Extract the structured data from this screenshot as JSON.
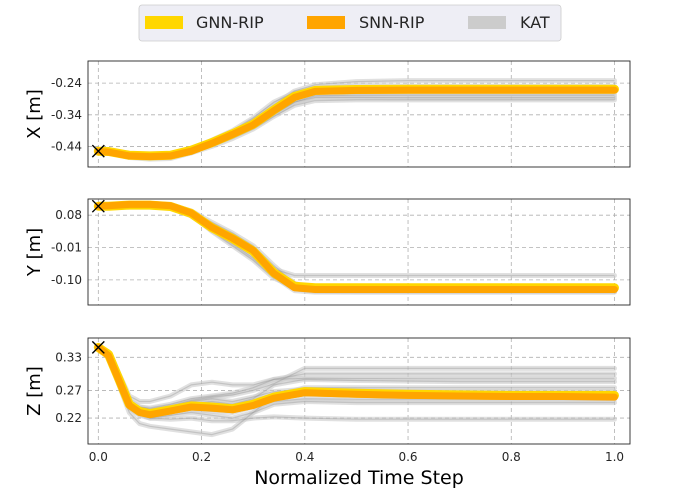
{
  "chart_data": {
    "type": "line",
    "xlabel": "Normalized Time Step",
    "xlim": [
      -0.02,
      1.03
    ],
    "x_ticks": [
      0.0,
      0.2,
      0.4,
      0.6,
      0.8,
      1.0
    ],
    "x_tick_labels": [
      "0.0",
      "0.2",
      "0.4",
      "0.6",
      "0.8",
      "1.0"
    ],
    "grid": true,
    "legend": {
      "placement": "top-center",
      "entries": [
        {
          "name": "GNN-RIP",
          "color": "#FFD700"
        },
        {
          "name": "SNN-RIP",
          "color": "#FFA500"
        },
        {
          "name": "KAT",
          "color": "#CCCCCC"
        }
      ]
    },
    "start_marker": "x",
    "panels": [
      {
        "ylabel": "X [m]",
        "ylim": [
          -0.505,
          -0.17
        ],
        "y_ticks": [
          -0.44,
          -0.34,
          -0.24
        ],
        "y_tick_labels": [
          "-0.44",
          "-0.34",
          "-0.24"
        ],
        "x": [
          0.0,
          0.02,
          0.06,
          0.1,
          0.14,
          0.18,
          0.22,
          0.26,
          0.3,
          0.34,
          0.38,
          0.42,
          0.5,
          0.6,
          0.7,
          0.8,
          0.9,
          1.0
        ],
        "series": [
          {
            "name": "GNN-RIP",
            "values": [
              -0.455,
              -0.456,
              -0.468,
              -0.47,
              -0.468,
              -0.452,
              -0.428,
              -0.4,
              -0.37,
              -0.325,
              -0.282,
              -0.263,
              -0.26,
              -0.259,
              -0.259,
              -0.259,
              -0.259,
              -0.259
            ]
          },
          {
            "name": "SNN-RIP",
            "values": [
              -0.455,
              -0.458,
              -0.47,
              -0.472,
              -0.47,
              -0.455,
              -0.43,
              -0.402,
              -0.372,
              -0.327,
              -0.285,
              -0.266,
              -0.263,
              -0.262,
              -0.262,
              -0.262,
              -0.262,
              -0.262
            ]
          }
        ],
        "kat": [
          [
            -0.455,
            -0.46,
            -0.47,
            -0.475,
            -0.472,
            -0.45,
            -0.42,
            -0.39,
            -0.35,
            -0.3,
            -0.27,
            -0.255,
            -0.25,
            -0.25,
            -0.25,
            -0.25,
            -0.25,
            -0.25
          ],
          [
            -0.455,
            -0.458,
            -0.468,
            -0.468,
            -0.466,
            -0.455,
            -0.435,
            -0.41,
            -0.38,
            -0.34,
            -0.3,
            -0.285,
            -0.285,
            -0.286,
            -0.286,
            -0.286,
            -0.286,
            -0.286
          ],
          [
            -0.455,
            -0.455,
            -0.465,
            -0.47,
            -0.47,
            -0.46,
            -0.44,
            -0.415,
            -0.385,
            -0.345,
            -0.31,
            -0.295,
            -0.293,
            -0.293,
            -0.293,
            -0.293,
            -0.293,
            -0.293
          ],
          [
            -0.455,
            -0.46,
            -0.475,
            -0.48,
            -0.478,
            -0.46,
            -0.43,
            -0.4,
            -0.36,
            -0.31,
            -0.265,
            -0.245,
            -0.235,
            -0.232,
            -0.232,
            -0.232,
            -0.232,
            -0.232
          ],
          [
            -0.455,
            -0.457,
            -0.466,
            -0.47,
            -0.469,
            -0.452,
            -0.425,
            -0.398,
            -0.365,
            -0.32,
            -0.278,
            -0.26,
            -0.258,
            -0.258,
            -0.258,
            -0.258,
            -0.258,
            -0.258
          ],
          [
            -0.455,
            -0.459,
            -0.47,
            -0.472,
            -0.47,
            -0.455,
            -0.432,
            -0.405,
            -0.375,
            -0.335,
            -0.29,
            -0.272,
            -0.27,
            -0.27,
            -0.27,
            -0.27,
            -0.27,
            -0.27
          ],
          [
            -0.455,
            -0.458,
            -0.47,
            -0.474,
            -0.472,
            -0.458,
            -0.43,
            -0.395,
            -0.355,
            -0.31,
            -0.272,
            -0.262,
            -0.262,
            -0.263,
            -0.263,
            -0.263,
            -0.263,
            -0.263
          ],
          [
            -0.455,
            -0.456,
            -0.465,
            -0.468,
            -0.465,
            -0.448,
            -0.428,
            -0.405,
            -0.378,
            -0.338,
            -0.3,
            -0.28,
            -0.278,
            -0.278,
            -0.278,
            -0.278,
            -0.278,
            -0.278
          ]
        ]
      },
      {
        "ylabel": "Y [m]",
        "ylim": [
          -0.17,
          0.125
        ],
        "y_ticks": [
          -0.1,
          -0.01,
          0.08
        ],
        "y_tick_labels": [
          "-0.10",
          "-0.01",
          "0.08"
        ],
        "x": [
          0.0,
          0.02,
          0.06,
          0.1,
          0.14,
          0.18,
          0.22,
          0.26,
          0.3,
          0.34,
          0.38,
          0.42,
          0.5,
          0.6,
          0.7,
          0.8,
          0.9,
          1.0
        ],
        "series": [
          {
            "name": "GNN-RIP",
            "values": [
              0.105,
              0.105,
              0.108,
              0.108,
              0.104,
              0.085,
              0.045,
              0.015,
              -0.02,
              -0.08,
              -0.118,
              -0.122,
              -0.122,
              -0.122,
              -0.122,
              -0.122,
              -0.122,
              -0.122
            ]
          },
          {
            "name": "SNN-RIP",
            "values": [
              0.105,
              0.106,
              0.11,
              0.11,
              0.106,
              0.086,
              0.046,
              0.016,
              -0.018,
              -0.082,
              -0.122,
              -0.127,
              -0.127,
              -0.127,
              -0.127,
              -0.127,
              -0.127,
              -0.127
            ]
          }
        ],
        "kat": [
          [
            0.105,
            0.105,
            0.11,
            0.112,
            0.11,
            0.09,
            0.05,
            0.02,
            -0.02,
            -0.07,
            -0.088,
            -0.088,
            -0.088,
            -0.088,
            -0.088,
            -0.088,
            -0.088,
            -0.088
          ],
          [
            0.105,
            0.104,
            0.105,
            0.104,
            0.1,
            0.078,
            0.038,
            0.0,
            -0.04,
            -0.09,
            -0.125,
            -0.132,
            -0.133,
            -0.133,
            -0.133,
            -0.133,
            -0.133,
            -0.133
          ],
          [
            0.105,
            0.106,
            0.108,
            0.106,
            0.103,
            0.088,
            0.055,
            0.025,
            -0.015,
            -0.075,
            -0.115,
            -0.12,
            -0.12,
            -0.12,
            -0.12,
            -0.12,
            -0.12,
            -0.12
          ],
          [
            0.105,
            0.105,
            0.11,
            0.11,
            0.108,
            0.092,
            0.06,
            0.03,
            -0.005,
            -0.06,
            -0.11,
            -0.126,
            -0.126,
            -0.126,
            -0.126,
            -0.126,
            -0.126,
            -0.126
          ],
          [
            0.105,
            0.105,
            0.106,
            0.107,
            0.102,
            0.08,
            0.04,
            0.01,
            -0.03,
            -0.09,
            -0.13,
            -0.134,
            -0.134,
            -0.134,
            -0.134,
            -0.134,
            -0.134,
            -0.134
          ],
          [
            0.105,
            0.106,
            0.111,
            0.111,
            0.108,
            0.09,
            0.048,
            0.012,
            -0.025,
            -0.085,
            -0.122,
            -0.125,
            -0.125,
            -0.125,
            -0.125,
            -0.125,
            -0.125,
            -0.125
          ],
          [
            0.105,
            0.104,
            0.104,
            0.105,
            0.1,
            0.082,
            0.035,
            -0.005,
            -0.045,
            -0.095,
            -0.12,
            -0.123,
            -0.123,
            -0.123,
            -0.123,
            -0.123,
            -0.123,
            -0.123
          ]
        ]
      },
      {
        "ylabel": "Z [m]",
        "ylim": [
          0.173,
          0.365
        ],
        "y_ticks": [
          0.22,
          0.27,
          0.33
        ],
        "y_tick_labels": [
          "0.22",
          "0.27",
          "0.33"
        ],
        "x": [
          0.0,
          0.02,
          0.04,
          0.06,
          0.08,
          0.1,
          0.14,
          0.18,
          0.22,
          0.26,
          0.3,
          0.34,
          0.4,
          0.5,
          0.6,
          0.7,
          0.8,
          0.9,
          1.0
        ],
        "series": [
          {
            "name": "GNN-RIP",
            "values": [
              0.348,
              0.335,
              0.29,
              0.245,
              0.232,
              0.228,
              0.235,
              0.242,
              0.24,
              0.237,
              0.245,
              0.258,
              0.268,
              0.265,
              0.263,
              0.262,
              0.261,
              0.261,
              0.261
            ]
          },
          {
            "name": "SNN-RIP",
            "values": [
              0.348,
              0.333,
              0.288,
              0.243,
              0.23,
              0.226,
              0.233,
              0.24,
              0.238,
              0.235,
              0.243,
              0.256,
              0.266,
              0.263,
              0.261,
              0.26,
              0.259,
              0.259,
              0.258
            ]
          }
        ],
        "kat": [
          [
            0.35,
            0.34,
            0.3,
            0.26,
            0.25,
            0.25,
            0.26,
            0.28,
            0.285,
            0.28,
            0.28,
            0.29,
            0.292,
            0.292,
            0.292,
            0.292,
            0.292,
            0.292,
            0.292
          ],
          [
            0.35,
            0.33,
            0.28,
            0.23,
            0.21,
            0.205,
            0.2,
            0.195,
            0.19,
            0.2,
            0.23,
            0.26,
            0.275,
            0.275,
            0.275,
            0.275,
            0.275,
            0.275,
            0.275
          ],
          [
            0.35,
            0.335,
            0.29,
            0.24,
            0.225,
            0.22,
            0.218,
            0.22,
            0.215,
            0.215,
            0.22,
            0.222,
            0.22,
            0.218,
            0.218,
            0.218,
            0.218,
            0.218,
            0.218
          ],
          [
            0.35,
            0.336,
            0.29,
            0.25,
            0.24,
            0.238,
            0.245,
            0.255,
            0.26,
            0.265,
            0.275,
            0.29,
            0.3,
            0.3,
            0.3,
            0.3,
            0.3,
            0.3,
            0.3
          ],
          [
            0.35,
            0.333,
            0.285,
            0.24,
            0.228,
            0.22,
            0.225,
            0.23,
            0.225,
            0.22,
            0.23,
            0.245,
            0.25,
            0.248,
            0.248,
            0.248,
            0.248,
            0.248,
            0.248
          ],
          [
            0.35,
            0.338,
            0.292,
            0.245,
            0.235,
            0.232,
            0.24,
            0.25,
            0.255,
            0.25,
            0.258,
            0.268,
            0.272,
            0.27,
            0.268,
            0.268,
            0.268,
            0.268,
            0.268
          ],
          [
            0.35,
            0.334,
            0.286,
            0.242,
            0.23,
            0.226,
            0.23,
            0.245,
            0.25,
            0.245,
            0.255,
            0.28,
            0.29,
            0.288,
            0.287,
            0.286,
            0.286,
            0.286,
            0.286
          ],
          [
            0.35,
            0.332,
            0.284,
            0.238,
            0.226,
            0.222,
            0.228,
            0.235,
            0.232,
            0.23,
            0.24,
            0.25,
            0.255,
            0.254,
            0.254,
            0.254,
            0.254,
            0.254,
            0.254
          ],
          [
            0.35,
            0.337,
            0.29,
            0.248,
            0.236,
            0.232,
            0.238,
            0.248,
            0.246,
            0.24,
            0.25,
            0.262,
            0.265,
            0.263,
            0.262,
            0.262,
            0.262,
            0.262,
            0.262
          ],
          [
            0.35,
            0.336,
            0.29,
            0.252,
            0.24,
            0.236,
            0.242,
            0.252,
            0.258,
            0.262,
            0.27,
            0.282,
            0.31,
            0.31,
            0.31,
            0.31,
            0.31,
            0.31,
            0.31
          ]
        ]
      }
    ]
  }
}
